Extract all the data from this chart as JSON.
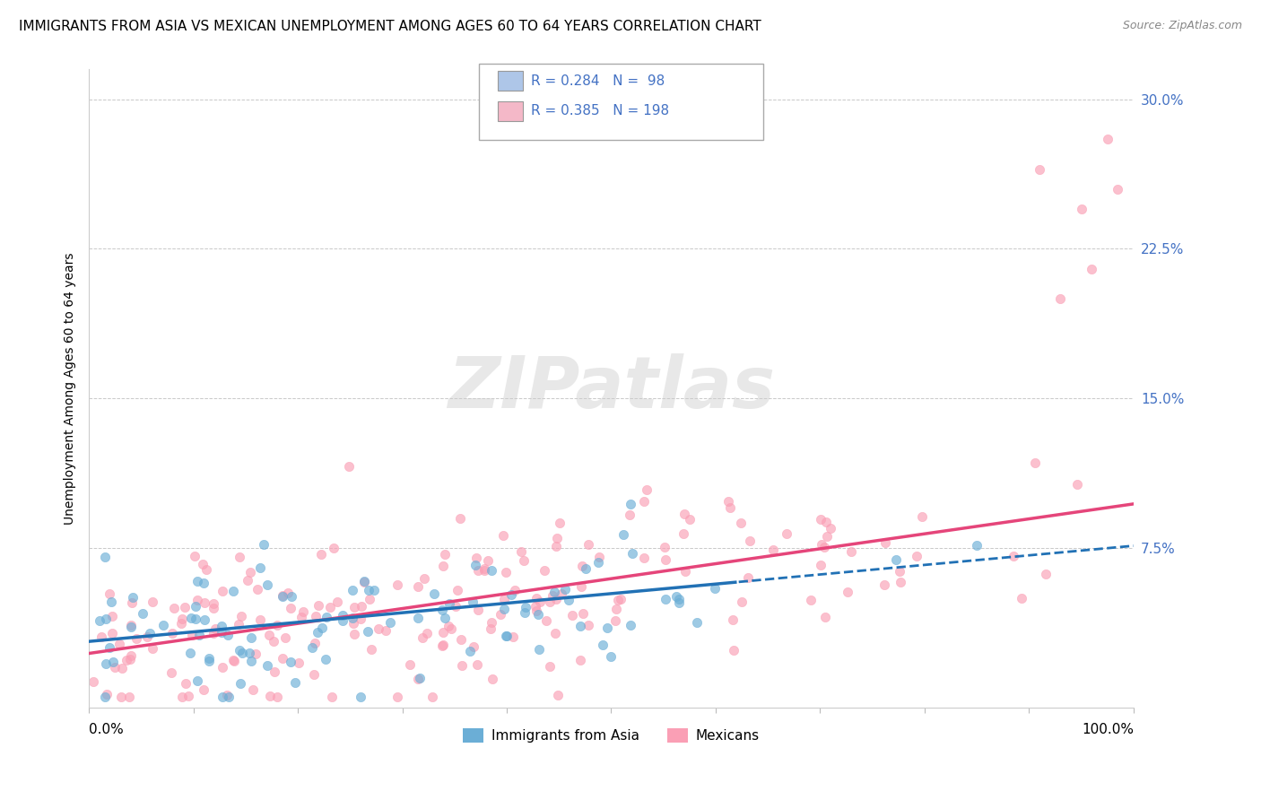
{
  "title": "IMMIGRANTS FROM ASIA VS MEXICAN UNEMPLOYMENT AMONG AGES 60 TO 64 YEARS CORRELATION CHART",
  "source": "Source: ZipAtlas.com",
  "ylabel": "Unemployment Among Ages 60 to 64 years",
  "yticks": [
    0.0,
    0.075,
    0.15,
    0.225,
    0.3
  ],
  "ytick_labels": [
    "",
    "7.5%",
    "15.0%",
    "22.5%",
    "30.0%"
  ],
  "xlim": [
    0.0,
    1.0
  ],
  "ylim": [
    -0.005,
    0.315
  ],
  "legend_entries": [
    {
      "label": "R = 0.284   N =  98",
      "color": "#aec6e8"
    },
    {
      "label": "R = 0.385   N = 198",
      "color": "#f4b8c8"
    }
  ],
  "series_asia": {
    "color": "#6baed6",
    "alpha": 0.65,
    "size": 55,
    "R": 0.284,
    "N": 98
  },
  "series_mexican": {
    "color": "#fa9fb5",
    "alpha": 0.65,
    "size": 55,
    "R": 0.385,
    "N": 198
  },
  "trend_asia_color": "#2171b5",
  "trend_mexican_color": "#e5457a",
  "watermark": "ZIPatlas",
  "legend_labels": [
    "Immigrants from Asia",
    "Mexicans"
  ],
  "background_color": "#ffffff",
  "grid_color": "#bbbbbb",
  "title_fontsize": 11,
  "tick_label_color": "#4472c4",
  "trend_asia_intercept": 0.028,
  "trend_asia_slope": 0.048,
  "trend_mexican_intercept": 0.022,
  "trend_mexican_slope": 0.075
}
